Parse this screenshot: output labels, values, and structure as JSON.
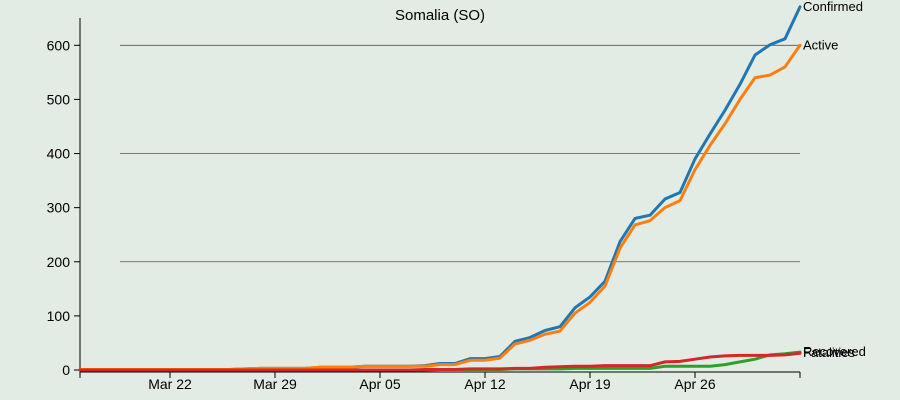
{
  "chart_data": {
    "type": "line",
    "title": "Somalia (SO)",
    "xlabel": "",
    "ylabel": "",
    "x_start": "Mar 16",
    "x_end": "May 3",
    "ylim": [
      0,
      680
    ],
    "y_ticks": [
      0,
      100,
      200,
      300,
      400,
      500,
      600
    ],
    "x_ticks": [
      "Mar 22",
      "Mar 29",
      "Apr 05",
      "Apr 12",
      "Apr 19",
      "Apr 26"
    ],
    "gridlines": [
      200,
      400,
      600
    ],
    "x": [
      "Mar 16",
      "Mar 17",
      "Mar 18",
      "Mar 19",
      "Mar 20",
      "Mar 21",
      "Mar 22",
      "Mar 23",
      "Mar 24",
      "Mar 25",
      "Mar 26",
      "Mar 27",
      "Mar 28",
      "Mar 29",
      "Mar 30",
      "Mar 31",
      "Apr 01",
      "Apr 02",
      "Apr 03",
      "Apr 04",
      "Apr 05",
      "Apr 06",
      "Apr 07",
      "Apr 08",
      "Apr 09",
      "Apr 10",
      "Apr 11",
      "Apr 12",
      "Apr 13",
      "Apr 14",
      "Apr 15",
      "Apr 16",
      "Apr 17",
      "Apr 18",
      "Apr 19",
      "Apr 20",
      "Apr 21",
      "Apr 22",
      "Apr 23",
      "Apr 24",
      "Apr 25",
      "Apr 26",
      "Apr 27",
      "Apr 28",
      "Apr 29",
      "Apr 30",
      "May 01",
      "May 02",
      "May 03"
    ],
    "series": [
      {
        "name": "Confirmed",
        "color": "#1f77b4",
        "values": [
          1,
          1,
          1,
          1,
          1,
          1,
          1,
          1,
          1,
          1,
          1,
          2,
          3,
          3,
          3,
          3,
          5,
          5,
          5,
          7,
          7,
          7,
          7,
          8,
          12,
          12,
          21,
          21,
          25,
          53,
          60,
          73,
          80,
          115,
          135,
          164,
          237,
          280,
          286,
          316,
          328,
          390,
          436,
          480,
          528,
          582,
          601,
          612,
          671
        ]
      },
      {
        "name": "Active",
        "color": "#ff7f0e",
        "values": [
          1,
          1,
          1,
          1,
          1,
          1,
          1,
          1,
          1,
          1,
          1,
          2,
          3,
          3,
          3,
          3,
          5,
          5,
          5,
          7,
          7,
          7,
          7,
          7,
          10,
          10,
          18,
          18,
          22,
          48,
          55,
          66,
          72,
          105,
          125,
          155,
          225,
          268,
          276,
          300,
          313,
          370,
          415,
          455,
          500,
          540,
          545,
          560,
          600
        ]
      },
      {
        "name": "Recovered",
        "color": "#2ca02c",
        "values": [
          0,
          0,
          0,
          0,
          0,
          0,
          0,
          0,
          0,
          0,
          0,
          0,
          0,
          0,
          0,
          0,
          0,
          0,
          0,
          0,
          0,
          0,
          0,
          0,
          1,
          1,
          1,
          1,
          1,
          2,
          2,
          2,
          2,
          3,
          3,
          3,
          3,
          3,
          3,
          7,
          7,
          7,
          7,
          10,
          15,
          20,
          28,
          30,
          33
        ]
      },
      {
        "name": "Fatalities",
        "color": "#d62728",
        "values": [
          0,
          0,
          0,
          0,
          0,
          0,
          0,
          0,
          0,
          0,
          0,
          0,
          0,
          0,
          0,
          0,
          0,
          0,
          0,
          0,
          0,
          0,
          0,
          1,
          1,
          1,
          2,
          2,
          2,
          3,
          3,
          5,
          6,
          7,
          7,
          8,
          8,
          8,
          8,
          15,
          16,
          20,
          24,
          26,
          27,
          27,
          27,
          28,
          31
        ]
      }
    ]
  }
}
